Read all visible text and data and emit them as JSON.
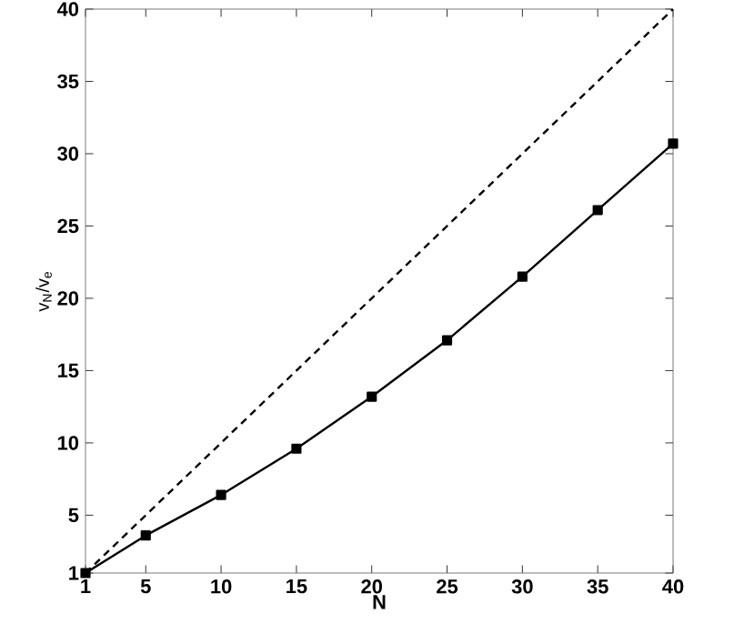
{
  "chart_data": {
    "type": "line",
    "xlabel": "N",
    "ylabel": "v$_{N}$/v$_{e}$",
    "xlim": [
      1,
      40
    ],
    "ylim": [
      1,
      40
    ],
    "xticks": [
      1,
      5,
      10,
      15,
      20,
      25,
      30,
      35,
      40
    ],
    "yticks": [
      1,
      5,
      10,
      15,
      20,
      25,
      30,
      35,
      40
    ],
    "grid": false,
    "series": [
      {
        "color": "#000000",
        "x": [
          1,
          40
        ],
        "values": [
          1,
          40
        ],
        "line_style": "dashed"
      },
      {
        "color": "#000000",
        "x": [
          1,
          5,
          10,
          15,
          20,
          25,
          30,
          35,
          40
        ],
        "values": [
          1,
          3.6,
          6.4,
          9.6,
          13.2,
          17.1,
          21.5,
          26.1,
          30.7
        ],
        "line_style": "solid",
        "marker": "square"
      }
    ]
  }
}
